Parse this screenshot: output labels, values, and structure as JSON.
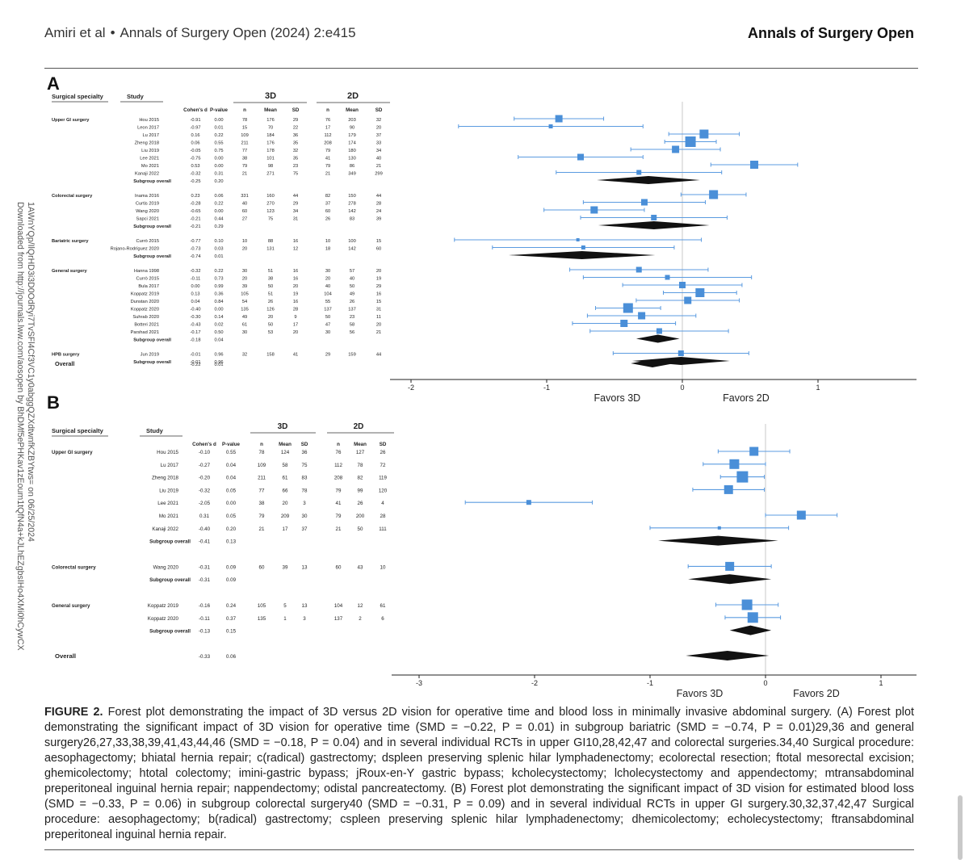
{
  "header": {
    "citation_authors": "Amiri et al",
    "bullet": "•",
    "citation_journal": "Annals of Surgery Open (2024) 2:e415",
    "journal_name": "Annals of Surgery Open"
  },
  "side_note": {
    "line1": "Downloaded from http://journals.lww.com/aosopen by BhDMf5ePHKav1zEoum1tQfN4a+kJLhEZgbsIHo4XMi0hCywCX",
    "line2": "1AWnYQp/IlQrHD3i3D0OdRyi7TvSFl4Cf3VC1y0abggQZXdtwnfKZBYtws= on 06/25/2024"
  },
  "panel_a": {
    "letter": "A",
    "col_headers": {
      "specialty": "Surgical specialty",
      "study": "Study",
      "cohens_d": "Cohen's d",
      "p_value": "P-value",
      "group_3d": "3D",
      "group_2d": "2D",
      "n": "n",
      "mean": "Mean",
      "sd": "SD"
    },
    "axis": {
      "ticks": [
        -2,
        -1,
        0,
        1
      ],
      "tick_labels": [
        "-2",
        "-1",
        "0",
        "1"
      ],
      "favors_left": "Favors 3D",
      "favors_right": "Favors 2D"
    },
    "groups": [
      {
        "name": "Upper GI surgery",
        "rows": [
          {
            "study": "Hou 2015",
            "d": "-0.91",
            "p": "0.00",
            "n3": "78",
            "m3": "176",
            "s3": "29",
            "n2": "76",
            "m2": "203",
            "s2": "32",
            "est": -0.91,
            "lo": -1.24,
            "hi": -0.58,
            "w": 9
          },
          {
            "study": "Leon 2017",
            "d": "-0.97",
            "p": "0.01",
            "n3": "15",
            "m3": "70",
            "s3": "22",
            "n2": "17",
            "m2": "90",
            "s2": "20",
            "est": -0.97,
            "lo": -1.65,
            "hi": -0.29,
            "w": 5
          },
          {
            "study": "Lu 2017",
            "d": "0.16",
            "p": "0.22",
            "n3": "109",
            "m3": "184",
            "s3": "36",
            "n2": "112",
            "m2": "179",
            "s2": "37",
            "est": 0.16,
            "lo": -0.1,
            "hi": 0.42,
            "w": 11
          },
          {
            "study": "Zheng 2018",
            "d": "0.06",
            "p": "0.55",
            "n3": "211",
            "m3": "176",
            "s3": "35",
            "n2": "208",
            "m2": "174",
            "s2": "33",
            "est": 0.06,
            "lo": -0.13,
            "hi": 0.25,
            "w": 13
          },
          {
            "study": "Liu 2019",
            "d": "-0.05",
            "p": "0.75",
            "n3": "77",
            "m3": "178",
            "s3": "32",
            "n2": "79",
            "m2": "180",
            "s2": "34",
            "est": -0.05,
            "lo": -0.38,
            "hi": 0.28,
            "w": 9
          },
          {
            "study": "Lee 2021",
            "d": "-0.75",
            "p": "0.00",
            "n3": "38",
            "m3": "101",
            "s3": "35",
            "n2": "41",
            "m2": "130",
            "s2": "40",
            "est": -0.75,
            "lo": -1.21,
            "hi": -0.29,
            "w": 8
          },
          {
            "study": "Mo 2021",
            "d": "0.53",
            "p": "0.00",
            "n3": "79",
            "m3": "98",
            "s3": "23",
            "n2": "79",
            "m2": "86",
            "s2": "21",
            "est": 0.53,
            "lo": 0.21,
            "hi": 0.85,
            "w": 10
          },
          {
            "study": "Kanaji 2022",
            "d": "-0.32",
            "p": "0.31",
            "n3": "21",
            "m3": "271",
            "s3": "75",
            "n2": "21",
            "m2": "349",
            "s2": "299",
            "est": -0.32,
            "lo": -0.93,
            "hi": 0.29,
            "w": 6
          }
        ],
        "overall_label": "Subgroup overall",
        "overall": {
          "d": "-0.25",
          "p": "0.20",
          "est": -0.25,
          "lo": -0.63,
          "hi": 0.13
        }
      },
      {
        "name": "Colorectal surgery",
        "rows": [
          {
            "study": "Inama 2016",
            "d": "0.23",
            "p": "0.06",
            "n3": "331",
            "m3": "160",
            "s3": "44",
            "n2": "82",
            "m2": "150",
            "s2": "44",
            "est": 0.23,
            "lo": -0.01,
            "hi": 0.47,
            "w": 11
          },
          {
            "study": "Curtis 2019",
            "d": "-0.28",
            "p": "0.22",
            "n3": "40",
            "m3": "270",
            "s3": "29",
            "n2": "37",
            "m2": "278",
            "s2": "28",
            "est": -0.28,
            "lo": -0.73,
            "hi": 0.17,
            "w": 8
          },
          {
            "study": "Wang 2020",
            "d": "-0.65",
            "p": "0.00",
            "n3": "60",
            "m3": "123",
            "s3": "34",
            "n2": "60",
            "m2": "142",
            "s2": "24",
            "est": -0.65,
            "lo": -1.02,
            "hi": -0.28,
            "w": 9
          },
          {
            "study": "Sapci 2021",
            "d": "-0.21",
            "p": "0.44",
            "n3": "27",
            "m3": "75",
            "s3": "31",
            "n2": "26",
            "m2": "83",
            "s2": "39",
            "est": -0.21,
            "lo": -0.75,
            "hi": 0.33,
            "w": 7
          }
        ],
        "overall_label": "Subgroup overall",
        "overall": {
          "d": "-0.21",
          "p": "0.29",
          "est": -0.21,
          "lo": -0.62,
          "hi": 0.2
        }
      },
      {
        "name": "Bariatric surgery",
        "rows": [
          {
            "study": "Currò 2015",
            "d": "-0.77",
            "p": "0.10",
            "n3": "10",
            "m3": "88",
            "s3": "16",
            "n2": "10",
            "m2": "100",
            "s2": "15",
            "est": -0.77,
            "lo": -1.68,
            "hi": 0.14,
            "w": 4
          },
          {
            "study": "Rojano-Rodríguez 2020",
            "d": "-0.73",
            "p": "0.03",
            "n3": "20",
            "m3": "131",
            "s3": "12",
            "n2": "18",
            "m2": "142",
            "s2": "60",
            "est": -0.73,
            "lo": -1.4,
            "hi": -0.06,
            "w": 5
          }
        ],
        "overall_label": "Subgroup overall",
        "overall": {
          "d": "-0.74",
          "p": "0.01",
          "est": -0.74,
          "lo": -1.28,
          "hi": -0.2
        }
      },
      {
        "name": "General surgery",
        "rows": [
          {
            "study": "Hanna 1998",
            "d": "-0.32",
            "p": "0.22",
            "n3": "30",
            "m3": "51",
            "s3": "16",
            "n2": "30",
            "m2": "57",
            "s2": "20",
            "est": -0.32,
            "lo": -0.83,
            "hi": 0.19,
            "w": 7
          },
          {
            "study": "Currò 2015",
            "d": "-0.11",
            "p": "0.73",
            "n3": "20",
            "m3": "38",
            "s3": "16",
            "n2": "20",
            "m2": "40",
            "s2": "19",
            "est": -0.11,
            "lo": -0.73,
            "hi": 0.51,
            "w": 6
          },
          {
            "study": "Bula 2017",
            "d": "0.00",
            "p": "0.99",
            "n3": "39",
            "m3": "50",
            "s3": "20",
            "n2": "40",
            "m2": "50",
            "s2": "29",
            "est": 0.0,
            "lo": -0.44,
            "hi": 0.44,
            "w": 8
          },
          {
            "study": "Koppatz 2019",
            "d": "0.13",
            "p": "0.36",
            "n3": "105",
            "m3": "51",
            "s3": "19",
            "n2": "104",
            "m2": "49",
            "s2": "16",
            "est": 0.13,
            "lo": -0.14,
            "hi": 0.4,
            "w": 11
          },
          {
            "study": "Dunstan 2020",
            "d": "0.04",
            "p": "0.84",
            "n3": "54",
            "m3": "26",
            "s3": "16",
            "n2": "55",
            "m2": "26",
            "s2": "15",
            "est": 0.04,
            "lo": -0.34,
            "hi": 0.42,
            "w": 9
          },
          {
            "study": "Koppatz 2020",
            "d": "-0.40",
            "p": "0.00",
            "n3": "135",
            "m3": "126",
            "s3": "28",
            "n2": "137",
            "m2": "137",
            "s2": "31",
            "est": -0.4,
            "lo": -0.64,
            "hi": -0.16,
            "w": 12
          },
          {
            "study": "Suhrab 2020",
            "d": "-0.30",
            "p": "0.14",
            "n3": "49",
            "m3": "20",
            "s3": "9",
            "n2": "50",
            "m2": "23",
            "s2": "11",
            "est": -0.3,
            "lo": -0.7,
            "hi": 0.1,
            "w": 9
          },
          {
            "study": "Botteri 2021",
            "d": "-0.43",
            "p": "0.02",
            "n3": "61",
            "m3": "50",
            "s3": "17",
            "n2": "47",
            "m2": "58",
            "s2": "20",
            "est": -0.43,
            "lo": -0.81,
            "hi": -0.05,
            "w": 9
          },
          {
            "study": "Parshad 2021",
            "d": "-0.17",
            "p": "0.50",
            "n3": "30",
            "m3": "53",
            "s3": "20",
            "n2": "30",
            "m2": "56",
            "s2": "21",
            "est": -0.17,
            "lo": -0.68,
            "hi": 0.34,
            "w": 7
          }
        ],
        "overall_label": "Subgroup overall",
        "overall": {
          "d": "-0.18",
          "p": "0.04",
          "est": -0.18,
          "lo": -0.34,
          "hi": -0.02
        }
      },
      {
        "name": "HPB surgery",
        "rows": [
          {
            "study": "Jun 2019",
            "d": "-0.01",
            "p": "0.96",
            "n3": "32",
            "m3": "158",
            "s3": "41",
            "n2": "29",
            "m2": "159",
            "s2": "44",
            "est": -0.01,
            "lo": -0.51,
            "hi": 0.49,
            "w": 7
          }
        ],
        "overall_label": "Subgroup overall",
        "overall": {
          "d": "-0.01",
          "p": "0.96",
          "est": -0.01,
          "lo": -0.37,
          "hi": 0.35
        }
      }
    ],
    "overall_label": "Overall",
    "overall": {
      "d": "-0.22",
      "p": "0.01",
      "est": -0.22,
      "lo": -0.38,
      "hi": -0.06
    }
  },
  "panel_b": {
    "letter": "B",
    "col_headers": {
      "specialty": "Surgical specialty",
      "study": "Study",
      "cohens_d": "Cohen's d",
      "p_value": "P-value",
      "group_3d": "3D",
      "group_2d": "2D",
      "n": "n",
      "mean": "Mean",
      "sd": "SD"
    },
    "axis": {
      "ticks": [
        -3,
        -2,
        -1,
        0,
        1
      ],
      "tick_labels": [
        "-3",
        "-2",
        "-1",
        "0",
        "1"
      ],
      "favors_left": "Favors 3D",
      "favors_right": "Favors 2D"
    },
    "groups": [
      {
        "name": "Upper GI surgery",
        "rows": [
          {
            "study": "Hou 2015",
            "d": "-0.10",
            "p": "0.55",
            "n3": "78",
            "m3": "124",
            "s3": "36",
            "n2": "76",
            "m2": "127",
            "s2": "26",
            "est": -0.1,
            "lo": -0.41,
            "hi": 0.21,
            "w": 11
          },
          {
            "study": "Lu 2017",
            "d": "-0.27",
            "p": "0.04",
            "n3": "109",
            "m3": "58",
            "s3": "75",
            "n2": "112",
            "m2": "78",
            "s2": "72",
            "est": -0.27,
            "lo": -0.54,
            "hi": 0.0,
            "w": 12
          },
          {
            "study": "Zheng 2018",
            "d": "-0.20",
            "p": "0.04",
            "n3": "211",
            "m3": "61",
            "s3": "83",
            "n2": "208",
            "m2": "82",
            "s2": "119",
            "est": -0.2,
            "lo": -0.39,
            "hi": -0.01,
            "w": 14
          },
          {
            "study": "Liu 2019",
            "d": "-0.32",
            "p": "0.05",
            "n3": "77",
            "m3": "66",
            "s3": "78",
            "n2": "79",
            "m2": "99",
            "s2": "120",
            "est": -0.32,
            "lo": -0.63,
            "hi": -0.01,
            "w": 11
          },
          {
            "study": "Lee 2021",
            "d": "-2.05",
            "p": "0.00",
            "n3": "38",
            "m3": "20",
            "s3": "3",
            "n2": "41",
            "m2": "26",
            "s2": "4",
            "est": -2.05,
            "lo": -2.6,
            "hi": -1.5,
            "w": 6
          },
          {
            "study": "Mo 2021",
            "d": "0.31",
            "p": "0.05",
            "n3": "79",
            "m3": "209",
            "s3": "30",
            "n2": "79",
            "m2": "200",
            "s2": "28",
            "est": 0.31,
            "lo": 0.0,
            "hi": 0.62,
            "w": 11
          },
          {
            "study": "Kanaji 2022",
            "d": "-0.40",
            "p": "0.20",
            "n3": "21",
            "m3": "17",
            "s3": "37",
            "n2": "21",
            "m2": "50",
            "s2": "111",
            "est": -0.4,
            "lo": -1.0,
            "hi": 0.2,
            "w": 4
          }
        ],
        "overall_label": "Subgroup overall",
        "overall": {
          "d": "-0.41",
          "p": "0.13",
          "est": -0.41,
          "lo": -0.93,
          "hi": 0.11
        }
      },
      {
        "name": "Colorectal surgery",
        "rows": [
          {
            "study": "Wang 2020",
            "d": "-0.31",
            "p": "0.09",
            "n3": "60",
            "m3": "39",
            "s3": "13",
            "n2": "60",
            "m2": "43",
            "s2": "10",
            "est": -0.31,
            "lo": -0.67,
            "hi": 0.05,
            "w": 11
          }
        ],
        "overall_label": "Subgroup overall",
        "overall": {
          "d": "-0.31",
          "p": "0.09",
          "est": -0.31,
          "lo": -0.67,
          "hi": 0.05
        }
      },
      {
        "name": "General surgery",
        "rows": [
          {
            "study": "Koppatz 2019",
            "d": "-0.16",
            "p": "0.24",
            "n3": "105",
            "m3": "5",
            "s3": "13",
            "n2": "104",
            "m2": "12",
            "s2": "61",
            "est": -0.16,
            "lo": -0.43,
            "hi": 0.11,
            "w": 13
          },
          {
            "study": "Koppatz 2020",
            "d": "-0.11",
            "p": "0.37",
            "n3": "135",
            "m3": "1",
            "s3": "3",
            "n2": "137",
            "m2": "2",
            "s2": "6",
            "est": -0.11,
            "lo": -0.35,
            "hi": 0.13,
            "w": 13
          }
        ],
        "overall_label": "Subgroup overall",
        "overall": {
          "d": "-0.13",
          "p": "0.15",
          "est": -0.13,
          "lo": -0.31,
          "hi": 0.05
        }
      }
    ],
    "overall_label": "Overall",
    "overall": {
      "d": "-0.33",
      "p": "0.06",
      "est": -0.33,
      "lo": -0.69,
      "hi": 0.03
    }
  },
  "chart_data": [
    {
      "type": "forest",
      "panel": "A",
      "effect_measure": "Cohen's d",
      "xlim": [
        -2,
        1
      ],
      "x_ticks": [
        -2,
        -1,
        0,
        1
      ],
      "x_favors": [
        "Favors 3D",
        "Favors 2D"
      ],
      "overall": {
        "estimate": -0.22,
        "p": 0.01
      },
      "subgroups": [
        {
          "name": "Upper GI surgery",
          "estimate": -0.25,
          "p": 0.2
        },
        {
          "name": "Colorectal surgery",
          "estimate": -0.21,
          "p": 0.29
        },
        {
          "name": "Bariatric surgery",
          "estimate": -0.74,
          "p": 0.01
        },
        {
          "name": "General surgery",
          "estimate": -0.18,
          "p": 0.04
        },
        {
          "name": "HPB surgery",
          "estimate": -0.01,
          "p": 0.96
        }
      ]
    },
    {
      "type": "forest",
      "panel": "B",
      "effect_measure": "Cohen's d",
      "xlim": [
        -3,
        1
      ],
      "x_ticks": [
        -3,
        -2,
        -1,
        0,
        1
      ],
      "x_favors": [
        "Favors 3D",
        "Favors 2D"
      ],
      "overall": {
        "estimate": -0.33,
        "p": 0.06
      },
      "subgroups": [
        {
          "name": "Upper GI surgery",
          "estimate": -0.41,
          "p": 0.13
        },
        {
          "name": "Colorectal surgery",
          "estimate": -0.31,
          "p": 0.09
        },
        {
          "name": "General surgery",
          "estimate": -0.13,
          "p": 0.15
        }
      ]
    }
  ],
  "caption": {
    "label": "FIGURE 2.",
    "text": "Forest plot demonstrating the impact of 3D versus 2D vision for operative time and blood loss in minimally invasive abdominal surgery. (A) Forest plot demonstrating the significant impact of 3D vision for operative time (SMD = −0.22, P = 0.01) in subgroup bariatric (SMD = −0.74, P = 0.01)29,36 and general surgery26,27,33,38,39,41,43,44,46 (SMD = −0.18, P = 0.04) and in several individual RCTs in upper GI10,28,42,47 and colorectal surgeries.34,40 Surgical procedure: aesophagectomy; bhiatal hernia repair; c(radical) gastrectomy; dspleen preserving splenic hilar lymphadenectomy; ecolorectal resection; ftotal mesorectal excision; ghemicolectomy; htotal colectomy; imini-gastric bypass; jRoux-en-Y gastric bypass; kcholecystectomy; lcholecystectomy and appendectomy; mtransabdominal preperitoneal inguinal hernia repair; nappendectomy; odistal pancreatectomy. (B) Forest plot demonstrating the significant impact of 3D vision for estimated blood loss (SMD = −0.33, P = 0.06) in subgroup colorectal surgery40 (SMD = −0.31, P = 0.09) and in several individual RCTs in upper GI surgery.30,32,37,42,47 Surgical procedure: aesophagectomy; b(radical) gastrectomy; cspleen preserving splenic hilar lymphadenectomy; dhemicolectomy; echolecystectomy; ftransabdominal preperitoneal inguinal hernia repair."
  },
  "colors": {
    "marker": "#4a8fd8",
    "ci_line": "#5b9be0",
    "diamond": "#111111"
  }
}
